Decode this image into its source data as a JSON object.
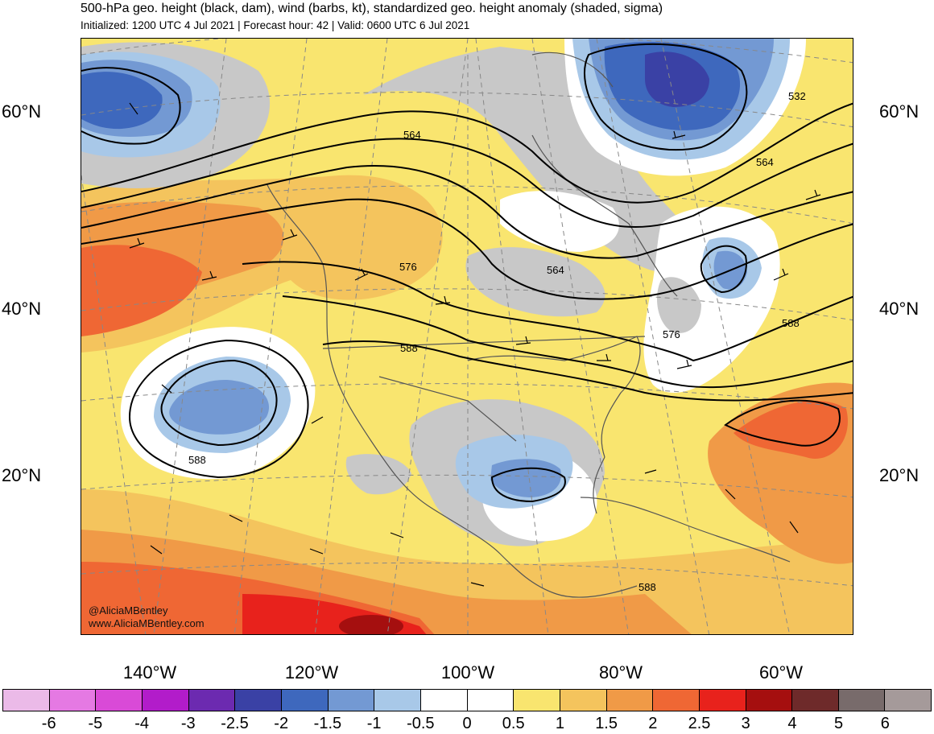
{
  "header": {
    "title": "500-hPa geo. height (black, dam), wind (barbs, kt), standardized geo. height anomaly (shaded, sigma)",
    "subtitle": "Initialized: 1200 UTC 4 Jul 2021 | Forecast hour: 42 | Valid: 0600 UTC 6 Jul 2021"
  },
  "lat_labels": {
    "left": [
      "60°N",
      "40°N",
      "20°N"
    ],
    "right": [
      "60°N",
      "40°N",
      "20°N"
    ]
  },
  "lon_labels": [
    "140°W",
    "120°W",
    "100°W",
    "80°W",
    "60°W"
  ],
  "contour_labels": {
    "c532": "532",
    "c564_a": "564",
    "c564_b": "564",
    "c564_c": "564",
    "c576_a": "576",
    "c576_b": "576",
    "c588_a": "588",
    "c588_b": "588",
    "c588_c": "588",
    "c588_d": "588"
  },
  "credits": {
    "handle": "@AliciaMBentley",
    "site": "www.AliciaMBentley.com"
  },
  "colorbar": {
    "colors": [
      "#ebbae8",
      "#e579e3",
      "#d94ad7",
      "#b21cca",
      "#6c2ab0",
      "#3a41a5",
      "#3e68bd",
      "#7399d3",
      "#a8c8e8",
      "#ffffff",
      "#ffffff",
      "#f9e56f",
      "#f4c45d",
      "#f09a47",
      "#ef6734",
      "#e8221c",
      "#a50f0f",
      "#6e2a2a",
      "#786b6b",
      "#a59a9a"
    ],
    "ticks": [
      "-6",
      "-5",
      "-4",
      "-3",
      "-2.5",
      "-2",
      "-1.5",
      "-1",
      "-0.5",
      "0",
      "0.5",
      "1",
      "1.5",
      "2",
      "2.5",
      "3",
      "4",
      "5",
      "6"
    ]
  },
  "anomaly_colors": {
    "yellow": "#f9e56f",
    "lightorange": "#f4c45d",
    "orange": "#f09a47",
    "redorange": "#ef6734",
    "red": "#e8221c",
    "darkred": "#a50f0f",
    "lightblue": "#a8c8e8",
    "midblue": "#7399d3",
    "blue": "#3e68bd",
    "darkblue": "#3a41a5",
    "white": "#ffffff",
    "gray": "#c8c8c8"
  }
}
